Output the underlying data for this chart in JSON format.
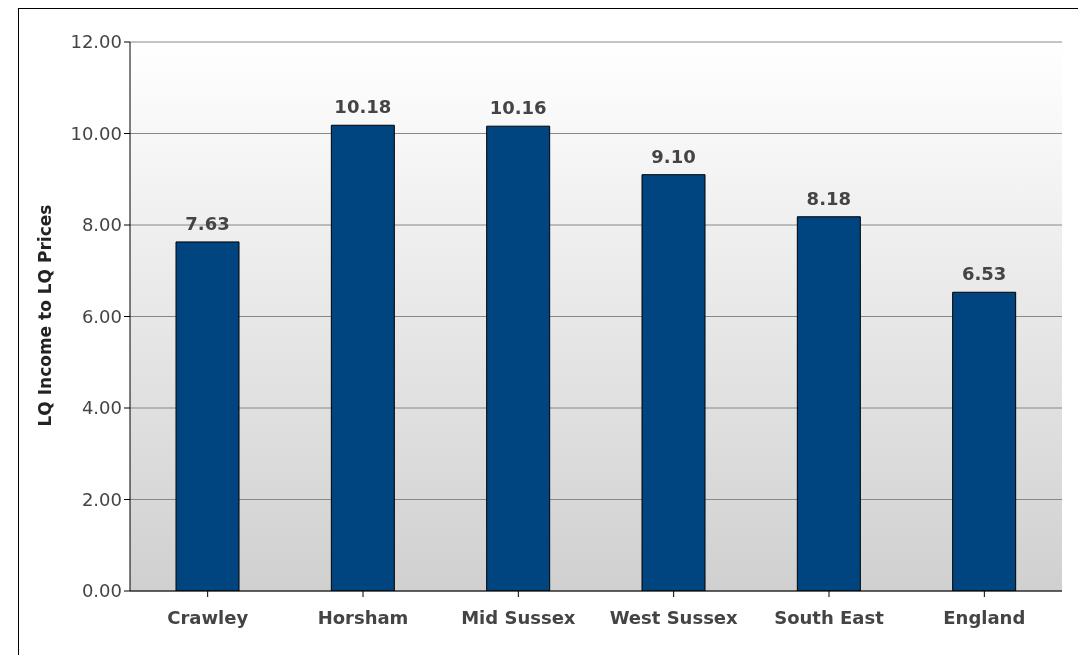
{
  "chart_data": {
    "type": "bar",
    "ylabel": "LQ Income to LQ Prices",
    "categories": [
      "Crawley",
      "Horsham",
      "Mid Sussex",
      "West Sussex",
      "South East",
      "England"
    ],
    "values": [
      7.63,
      10.18,
      10.16,
      9.1,
      8.18,
      6.53
    ],
    "value_labels": [
      "7.63",
      "10.18",
      "10.16",
      "9.10",
      "8.18",
      "6.53"
    ],
    "color": "#00457f",
    "ylim": [
      0,
      12
    ],
    "yticks": [
      {
        "value": 0,
        "label": "0.00"
      },
      {
        "value": 2,
        "label": "2.00"
      },
      {
        "value": 4,
        "label": "4.00"
      },
      {
        "value": 6,
        "label": "6.00"
      },
      {
        "value": 8,
        "label": "8.00"
      },
      {
        "value": 10,
        "label": "10.00"
      },
      {
        "value": 12,
        "label": "12.00"
      }
    ],
    "grid": "y",
    "legend": false
  }
}
